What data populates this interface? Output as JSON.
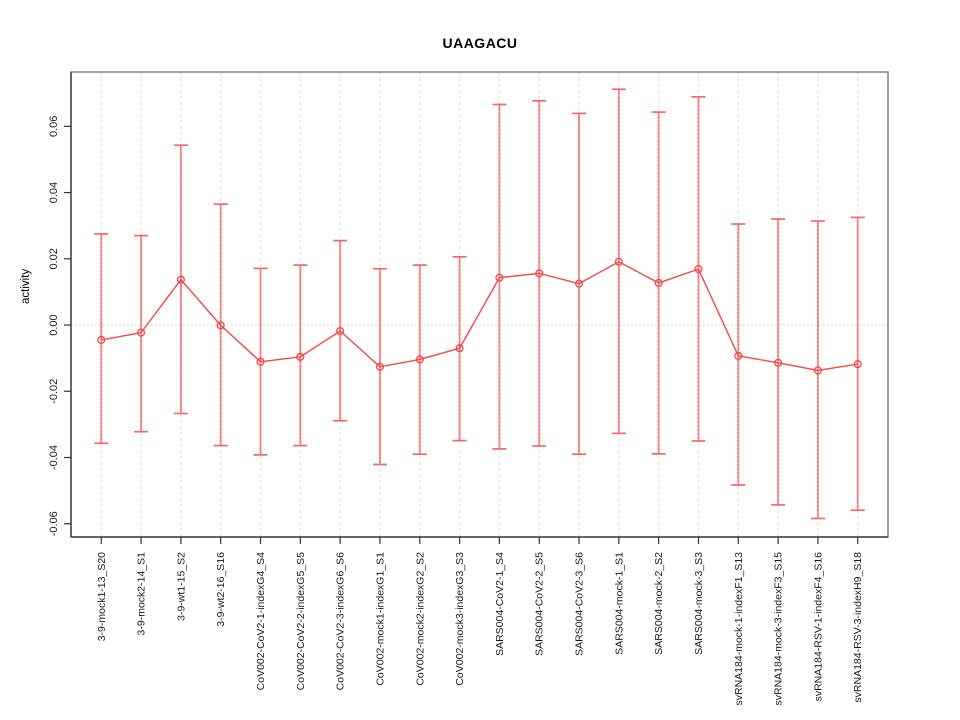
{
  "chart_data": {
    "type": "line",
    "title": "UAAGACU",
    "ylabel": "activity",
    "xlabel": "",
    "legend": "none",
    "grid": "vertical-dashed",
    "zero_line": true,
    "categories": [
      "3-9-mock1-13_S20",
      "3-9-mock2-14_S1",
      "3-9-wt1-15_S2",
      "3-9-wt2-16_S16",
      "CoV002-CoV2-1-indexG4_S4",
      "CoV002-CoV2-2-indexG5_S5",
      "CoV002-CoV2-3-indexG6_S6",
      "CoV002-mock1-indexG1_S1",
      "CoV002-mock2-indexG2_S2",
      "CoV002-mock3-indexG3_S3",
      "SARS004-CoV2-1_S4",
      "SARS004-CoV2-2_S5",
      "SARS004-CoV2-3_S6",
      "SARS004-mock-1_S1",
      "SARS004-mock-2_S2",
      "SARS004-mock-3_S3",
      "svRNA184-mock-1-indexF1_S13",
      "svRNA184-mock-3-indexF3_S15",
      "svRNA184-RSV-1-indexF4_S16",
      "svRNA184-RSV-3-indexH9_S18"
    ],
    "series": [
      {
        "name": "activity",
        "values": [
          -0.0045,
          -0.0023,
          0.0137,
          -0.0001,
          -0.0111,
          -0.0096,
          -0.0018,
          -0.0126,
          -0.0104,
          -0.007,
          0.0143,
          0.0156,
          0.0125,
          0.0191,
          0.0127,
          0.0169,
          -0.0093,
          -0.0114,
          -0.0137,
          -0.0118
        ],
        "error_low": [
          -0.0357,
          -0.0322,
          -0.0267,
          -0.0364,
          -0.0392,
          -0.0364,
          -0.0289,
          -0.0421,
          -0.039,
          -0.0349,
          -0.0374,
          -0.0365,
          -0.039,
          -0.0327,
          -0.0389,
          -0.035,
          -0.0483,
          -0.0543,
          -0.0584,
          -0.0559
        ],
        "error_high": [
          0.0275,
          0.027,
          0.0543,
          0.0365,
          0.0171,
          0.0181,
          0.0255,
          0.017,
          0.0181,
          0.0206,
          0.0666,
          0.0677,
          0.0639,
          0.0712,
          0.0643,
          0.0689,
          0.0305,
          0.032,
          0.0314,
          0.0325
        ]
      }
    ],
    "yticks": [
      -0.06,
      -0.04,
      -0.02,
      0.0,
      0.02,
      0.04,
      0.06
    ],
    "ytick_labels": [
      "-0.06",
      "-0.04",
      "-0.02",
      "0.00",
      "0.02",
      "0.04",
      "0.06"
    ],
    "ylim": [
      -0.064,
      0.0764
    ],
    "colors": {
      "line": "#f04a4a",
      "marker": "#f04a4a",
      "error_bar": "#f59595",
      "error_bar_core": "#ef6a6a",
      "grid": "#e6e6e6",
      "zero_line": "#cccccc",
      "box": "#8c8c8c",
      "axis": "#333333",
      "tick_text": "#1a1a1a"
    }
  }
}
